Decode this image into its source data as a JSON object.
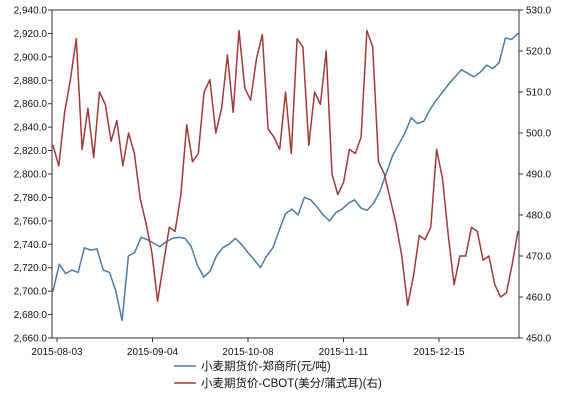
{
  "chart_data": {
    "type": "line",
    "title": "",
    "xlabel": "",
    "ylabel": "",
    "x_tick_labels": [
      "2015-08-03",
      "2015-09-04",
      "2015-10-08",
      "2015-11-11",
      "2015-12-15"
    ],
    "y_left": {
      "lim": [
        2660.0,
        2940.0
      ],
      "ticks": [
        2660.0,
        2680.0,
        2700.0,
        2720.0,
        2740.0,
        2760.0,
        2780.0,
        2800.0,
        2820.0,
        2840.0,
        2860.0,
        2880.0,
        2900.0,
        2920.0,
        2940.0
      ],
      "tick_labels": [
        "2,660.0",
        "2,680.0",
        "2,700.0",
        "2,720.0",
        "2,740.0",
        "2,760.0",
        "2,780.0",
        "2,800.0",
        "2,820.0",
        "2,840.0",
        "2,860.0",
        "2,880.0",
        "2,900.0",
        "2,920.0",
        "2,940.0"
      ]
    },
    "y_right": {
      "lim": [
        450.0,
        530.0
      ],
      "ticks": [
        450.0,
        460.0,
        470.0,
        480.0,
        490.0,
        500.0,
        510.0,
        520.0,
        530.0
      ],
      "tick_labels": [
        "450.0",
        "460.0",
        "470.0",
        "480.0",
        "490.0",
        "500.0",
        "510.0",
        "520.0",
        "530.0"
      ]
    },
    "grid": false,
    "legend_position": "bottom",
    "series": [
      {
        "name": "小麦期货价-郑商所(元/吨)",
        "axis": "left",
        "color": "#4a7bab",
        "values": [
          2700,
          2723,
          2715,
          2718,
          2716,
          2737,
          2735,
          2736,
          2718,
          2716,
          2700,
          2675,
          2730,
          2733,
          2746,
          2744,
          2741,
          2738,
          2742,
          2745,
          2746,
          2745,
          2738,
          2722,
          2712,
          2717,
          2730,
          2737,
          2740,
          2745,
          2740,
          2733,
          2727,
          2720,
          2730,
          2737,
          2752,
          2766,
          2770,
          2765,
          2780,
          2778,
          2772,
          2765,
          2760,
          2767,
          2770,
          2775,
          2778,
          2771,
          2769,
          2775,
          2785,
          2800,
          2815,
          2825,
          2835,
          2848,
          2843,
          2845,
          2855,
          2863,
          2870,
          2877,
          2883,
          2889,
          2886,
          2883,
          2887,
          2893,
          2890,
          2895,
          2916,
          2915,
          2920
        ]
      },
      {
        "name": "小麦期货价-CBOT(美分/蒲式耳)(右)",
        "axis": "right",
        "color": "#a23a3a",
        "values": [
          497,
          492,
          505,
          513,
          523,
          496,
          506,
          494,
          510,
          507,
          498,
          503,
          492,
          500,
          495,
          484,
          478,
          471,
          459,
          468,
          477,
          476,
          485,
          502,
          493,
          495,
          510,
          513,
          500,
          506,
          519,
          505,
          525,
          511,
          508,
          518,
          524,
          501,
          499,
          496,
          510,
          495,
          523,
          521,
          497,
          510,
          507,
          520,
          490,
          485,
          488,
          496,
          495,
          499,
          525,
          521,
          493,
          490,
          484,
          478,
          470,
          458,
          465,
          475,
          474,
          477,
          496,
          489,
          475,
          463,
          470,
          470,
          477,
          476,
          469,
          470,
          463,
          460,
          461,
          468,
          476
        ]
      }
    ]
  }
}
